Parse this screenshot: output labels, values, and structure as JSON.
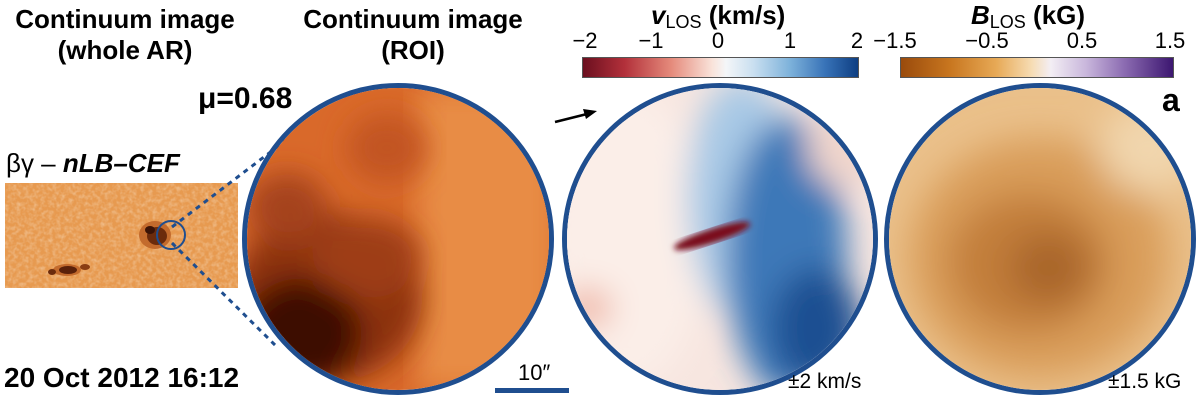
{
  "headers": {
    "whole_ar": [
      "Continuum image",
      "(whole AR)"
    ],
    "roi": [
      "Continuum image",
      "(ROI)"
    ]
  },
  "vlos_bar": {
    "symbol": "v",
    "subscript": "LOS",
    "unit": "(km/s)",
    "ticks": [
      "−2",
      "−1",
      "0",
      "1",
      "2"
    ]
  },
  "blos_bar": {
    "symbol": "B",
    "subscript": "LOS",
    "unit": "(kG)",
    "ticks": [
      "−1.5",
      "−0.5",
      "0.5",
      "1.5"
    ]
  },
  "mu_label": "μ=0.68",
  "panel_letter": "a",
  "classification": {
    "greek": "βγ – ",
    "type": "nLB–CEF"
  },
  "date_label": "20 Oct 2012 16:12",
  "scale_bar_label": "10″",
  "vlos_range": "±2 km/s",
  "blos_range": "±1.5 kG",
  "colors": {
    "frame": "#1f4e8f",
    "dotted_line": "#1f4e8f"
  }
}
